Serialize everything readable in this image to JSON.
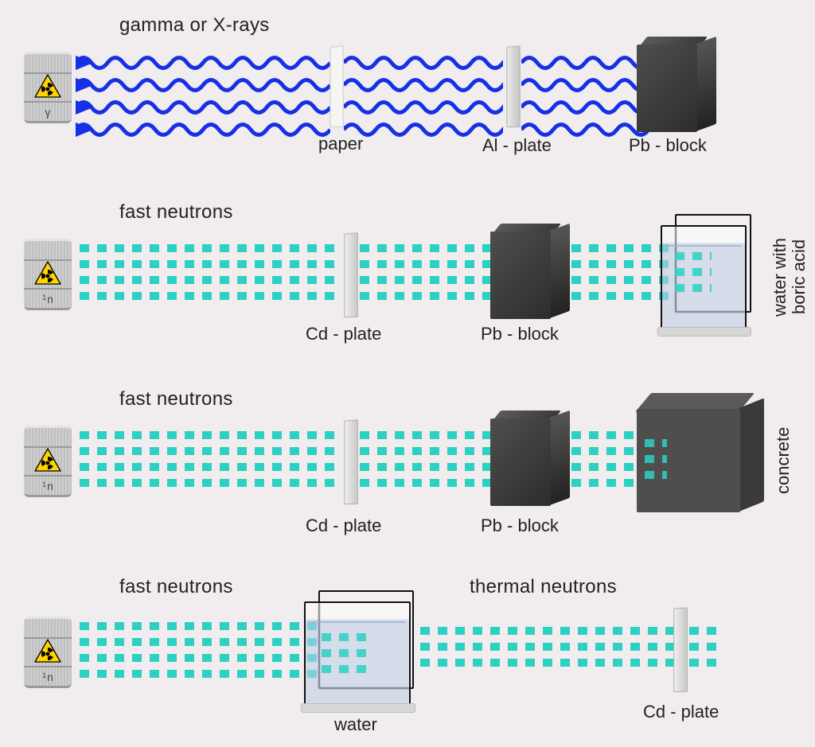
{
  "bg": "#f1eced",
  "text_color": "#222",
  "font_family": "Helvetica Neue, Helvetica, Arial, sans-serif",
  "title_fontsize": 24,
  "caption_fontsize": 22,
  "wave_color": "#1530e5",
  "neutron_color": "#2cd1c3",
  "dot_w": 12,
  "dot_h": 10,
  "dot_gap": 10,
  "palette": {
    "barrel_metal": "#c8c8c8",
    "hazard_bg": "#ffd400",
    "hazard_fg": "#000000",
    "paper": "#f5f5f3",
    "al_plate": "#d7d7d7",
    "cd_plate": "#dcdcdc",
    "pb_block": "#3a3a3a",
    "concrete": "#4e4e4e",
    "water": "#c6d2e7",
    "tank_frame": "#111111"
  },
  "rows": {
    "r1": {
      "type": "gamma",
      "title": "gamma or X-rays",
      "source_symbol": "γ",
      "shields": [
        {
          "name": "paper",
          "label": "paper"
        },
        {
          "name": "alplate",
          "label": "Al - plate"
        },
        {
          "name": "pbblock",
          "label": "Pb - block"
        }
      ]
    },
    "r2": {
      "type": "fast-neutrons",
      "title": "fast neutrons",
      "source_symbol": "¹n",
      "shields": [
        {
          "name": "cdplate",
          "label": "Cd - plate"
        },
        {
          "name": "pbblock",
          "label": "Pb - block"
        },
        {
          "name": "tank",
          "label": "water with boric acid",
          "vertical": true
        }
      ]
    },
    "r3": {
      "type": "fast-neutrons",
      "title": "fast neutrons",
      "source_symbol": "¹n",
      "shields": [
        {
          "name": "cdplate",
          "label": "Cd - plate"
        },
        {
          "name": "pbblock",
          "label": "Pb - block"
        },
        {
          "name": "concrete",
          "label": "concrete",
          "vertical": true
        }
      ]
    },
    "r4": {
      "type": "fast-neutrons",
      "title": "fast neutrons",
      "title2": "thermal neutrons",
      "source_symbol": "¹n",
      "shields": [
        {
          "name": "tank",
          "label": "water"
        },
        {
          "name": "cdplate",
          "label": "Cd - plate"
        }
      ]
    }
  }
}
